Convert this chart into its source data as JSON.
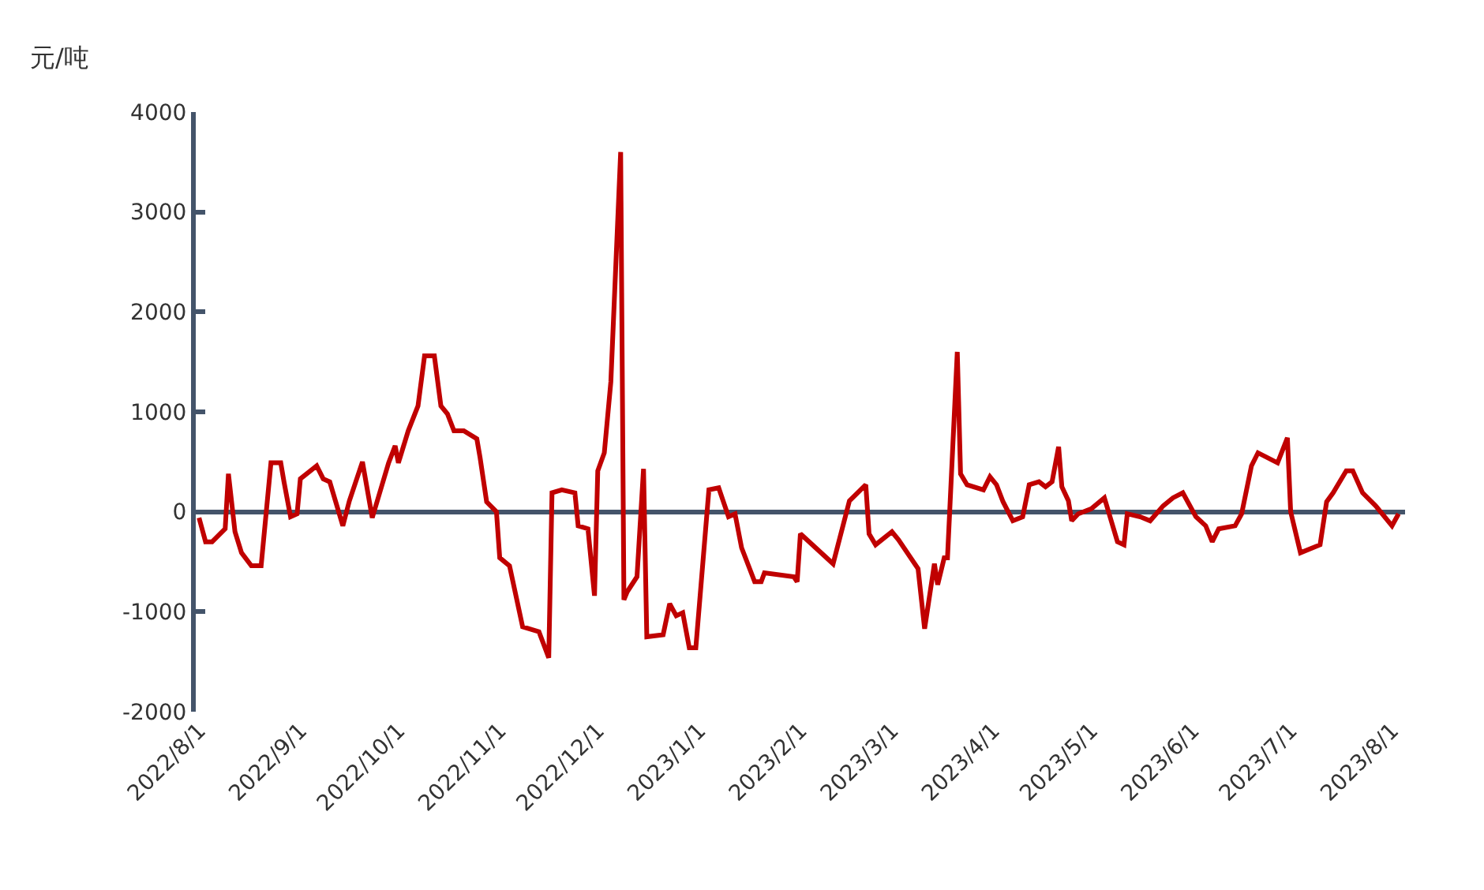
{
  "chart_data": {
    "type": "line",
    "ylabel": "元/吨",
    "x": [
      "2022-08-01",
      "2022-08-03",
      "2022-08-05",
      "2022-08-09",
      "2022-08-10",
      "2022-08-12",
      "2022-08-14",
      "2022-08-17",
      "2022-08-20",
      "2022-08-23",
      "2022-08-26",
      "2022-08-27",
      "2022-08-29",
      "2022-08-31",
      "2022-09-01",
      "2022-09-06",
      "2022-09-08",
      "2022-09-10",
      "2022-09-14",
      "2022-09-16",
      "2022-09-20",
      "2022-09-23",
      "2022-09-28",
      "2022-09-30",
      "2022-10-01",
      "2022-10-04",
      "2022-10-07",
      "2022-10-09",
      "2022-10-12",
      "2022-10-14",
      "2022-10-16",
      "2022-10-18",
      "2022-10-21",
      "2022-10-25",
      "2022-10-26",
      "2022-10-28",
      "2022-10-31",
      "2022-11-01",
      "2022-11-04",
      "2022-11-08",
      "2022-11-13",
      "2022-11-16",
      "2022-11-17",
      "2022-11-20",
      "2022-11-24",
      "2022-11-25",
      "2022-11-28",
      "2022-11-30",
      "2022-12-01",
      "2022-12-03",
      "2022-12-05",
      "2022-12-08",
      "2022-12-09",
      "2022-12-10",
      "2022-12-13",
      "2022-12-15",
      "2022-12-16",
      "2022-12-21",
      "2022-12-23",
      "2022-12-25",
      "2022-12-27",
      "2022-12-29",
      "2022-12-31",
      "2023-01-04",
      "2023-01-07",
      "2023-01-10",
      "2023-01-12",
      "2023-01-14",
      "2023-01-18",
      "2023-01-20",
      "2023-01-21",
      "2023-01-30",
      "2023-01-31",
      "2023-02-01",
      "2023-02-11",
      "2023-02-16",
      "2023-02-21",
      "2023-02-22",
      "2023-02-24",
      "2023-03-01",
      "2023-03-03",
      "2023-03-09",
      "2023-03-11",
      "2023-03-14",
      "2023-03-15",
      "2023-03-17",
      "2023-03-18",
      "2023-03-21",
      "2023-03-22",
      "2023-03-24",
      "2023-03-29",
      "2023-03-31",
      "2023-04-02",
      "2023-04-04",
      "2023-04-07",
      "2023-04-10",
      "2023-04-12",
      "2023-04-15",
      "2023-04-17",
      "2023-04-19",
      "2023-04-21",
      "2023-04-22",
      "2023-04-24",
      "2023-04-25",
      "2023-04-27",
      "2023-05-01",
      "2023-05-05",
      "2023-05-09",
      "2023-05-11",
      "2023-05-12",
      "2023-05-16",
      "2023-05-19",
      "2023-05-23",
      "2023-05-26",
      "2023-05-29",
      "2023-06-02",
      "2023-06-05",
      "2023-06-07",
      "2023-06-09",
      "2023-06-14",
      "2023-06-16",
      "2023-06-19",
      "2023-06-21",
      "2023-06-27",
      "2023-06-30",
      "2023-07-01",
      "2023-07-04",
      "2023-07-10",
      "2023-07-12",
      "2023-07-14",
      "2023-07-18",
      "2023-07-20",
      "2023-07-23",
      "2023-07-27",
      "2023-08-01",
      "2023-08-03"
    ],
    "series": [
      {
        "color": "#c00000",
        "values": [
          -60,
          -300,
          -300,
          -170,
          380,
          -200,
          -410,
          -540,
          -540,
          490,
          490,
          300,
          -50,
          -20,
          330,
          460,
          330,
          300,
          -140,
          110,
          500,
          -60,
          490,
          660,
          490,
          810,
          1060,
          1560,
          1560,
          1060,
          980,
          810,
          810,
          730,
          540,
          100,
          0,
          -460,
          -540,
          -1150,
          -1200,
          -1460,
          190,
          220,
          190,
          -140,
          -170,
          -840,
          410,
          590,
          1300,
          3600,
          -880,
          -800,
          -650,
          430,
          -1250,
          -1230,
          -920,
          -1040,
          -1010,
          -1360,
          -1360,
          220,
          240,
          -50,
          -20,
          -360,
          -700,
          -700,
          -610,
          -650,
          -700,
          -220,
          -520,
          110,
          270,
          -220,
          -330,
          -200,
          -280,
          -570,
          -1170,
          -520,
          -730,
          -460,
          -460,
          1600,
          380,
          270,
          220,
          350,
          270,
          100,
          -90,
          -50,
          270,
          300,
          250,
          300,
          650,
          250,
          110,
          -90,
          -20,
          30,
          140,
          -300,
          -330,
          -20,
          -50,
          -90,
          60,
          140,
          190,
          -50,
          -140,
          -300,
          -170,
          -140,
          -20,
          460,
          590,
          490,
          740,
          0,
          -410,
          -330,
          100,
          190,
          410,
          410,
          190,
          60,
          -140,
          -20
        ]
      }
    ],
    "xlim": [
      "2022-07-31",
      "2023-08-05"
    ],
    "xticks": [
      {
        "value": "2022-08-01",
        "label": "2022/8/1"
      },
      {
        "value": "2022-09-01",
        "label": "2022/9/1"
      },
      {
        "value": "2022-10-01",
        "label": "2022/10/1"
      },
      {
        "value": "2022-11-01",
        "label": "2022/11/1"
      },
      {
        "value": "2022-12-01",
        "label": "2022/12/1"
      },
      {
        "value": "2023-01-01",
        "label": "2023/1/1"
      },
      {
        "value": "2023-02-01",
        "label": "2023/2/1"
      },
      {
        "value": "2023-03-01",
        "label": "2023/3/1"
      },
      {
        "value": "2023-04-01",
        "label": "2023/4/1"
      },
      {
        "value": "2023-05-01",
        "label": "2023/5/1"
      },
      {
        "value": "2023-06-01",
        "label": "2023/6/1"
      },
      {
        "value": "2023-07-01",
        "label": "2023/7/1"
      },
      {
        "value": "2023-08-01",
        "label": "2023/8/1"
      }
    ],
    "ylim": [
      -2000,
      4000
    ],
    "yticks": [
      -2000,
      -1000,
      0,
      1000,
      2000,
      3000,
      4000
    ],
    "marker": "none",
    "line_style": "solid"
  }
}
